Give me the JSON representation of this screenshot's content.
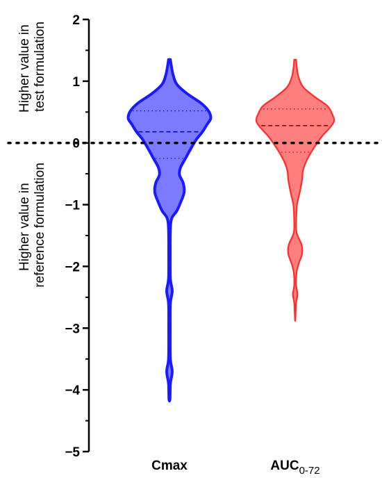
{
  "chart_data": {
    "type": "violin",
    "ylim": [
      -5,
      2
    ],
    "yticks": [
      "2",
      "1",
      "0",
      "−1",
      "−2",
      "−3",
      "−4",
      "−5"
    ],
    "ytick_values": [
      2,
      1,
      0,
      -1,
      -2,
      -3,
      -4,
      -5
    ],
    "reference_line": 0,
    "upper_label": [
      "Higher value in",
      "test formulation"
    ],
    "lower_label": [
      "Higher value in",
      "reference formulation"
    ],
    "categories": [
      {
        "label": "Cmax",
        "sub": ""
      },
      {
        "label": "AUC",
        "sub": "0-72"
      }
    ],
    "series": [
      {
        "name": "Cmax",
        "color": "#1a1aff",
        "fill": "#7b7bff",
        "quartiles": {
          "q1": -0.25,
          "median": 0.18,
          "q3": 0.52
        },
        "profile": [
          [
            1.35,
            0.02
          ],
          [
            1.25,
            0.04
          ],
          [
            1.1,
            0.08
          ],
          [
            0.95,
            0.16
          ],
          [
            0.8,
            0.38
          ],
          [
            0.65,
            0.68
          ],
          [
            0.52,
            0.85
          ],
          [
            0.4,
            0.9
          ],
          [
            0.3,
            0.82
          ],
          [
            0.18,
            0.72
          ],
          [
            0.05,
            0.58
          ],
          [
            -0.1,
            0.46
          ],
          [
            -0.25,
            0.35
          ],
          [
            -0.4,
            0.24
          ],
          [
            -0.52,
            0.22
          ],
          [
            -0.65,
            0.3
          ],
          [
            -0.8,
            0.32
          ],
          [
            -0.95,
            0.25
          ],
          [
            -1.1,
            0.16
          ],
          [
            -1.22,
            0.05
          ],
          [
            -1.4,
            0.02
          ],
          [
            -1.8,
            0.015
          ],
          [
            -2.2,
            0.02
          ],
          [
            -2.4,
            0.06
          ],
          [
            -2.6,
            0.02
          ],
          [
            -3.0,
            0.015
          ],
          [
            -3.5,
            0.02
          ],
          [
            -3.7,
            0.06
          ],
          [
            -3.9,
            0.02
          ],
          [
            -4.15,
            0.01
          ]
        ]
      },
      {
        "name": "AUC0-72",
        "color": "#ff2a2a",
        "fill": "#ff7f7f",
        "quartiles": {
          "q1": -0.15,
          "median": 0.28,
          "q3": 0.55
        },
        "profile": [
          [
            1.35,
            0.02
          ],
          [
            1.2,
            0.04
          ],
          [
            1.05,
            0.08
          ],
          [
            0.9,
            0.18
          ],
          [
            0.75,
            0.42
          ],
          [
            0.6,
            0.7
          ],
          [
            0.48,
            0.8
          ],
          [
            0.36,
            0.85
          ],
          [
            0.25,
            0.76
          ],
          [
            0.12,
            0.6
          ],
          [
            0.0,
            0.48
          ],
          [
            -0.15,
            0.35
          ],
          [
            -0.3,
            0.24
          ],
          [
            -0.45,
            0.17
          ],
          [
            -0.6,
            0.15
          ],
          [
            -0.8,
            0.1
          ],
          [
            -1.0,
            0.04
          ],
          [
            -1.2,
            0.025
          ],
          [
            -1.45,
            0.03
          ],
          [
            -1.65,
            0.14
          ],
          [
            -1.8,
            0.15
          ],
          [
            -1.95,
            0.08
          ],
          [
            -2.1,
            0.03
          ],
          [
            -2.3,
            0.02
          ],
          [
            -2.45,
            0.05
          ],
          [
            -2.6,
            0.02
          ],
          [
            -2.85,
            0.005
          ]
        ]
      }
    ]
  }
}
